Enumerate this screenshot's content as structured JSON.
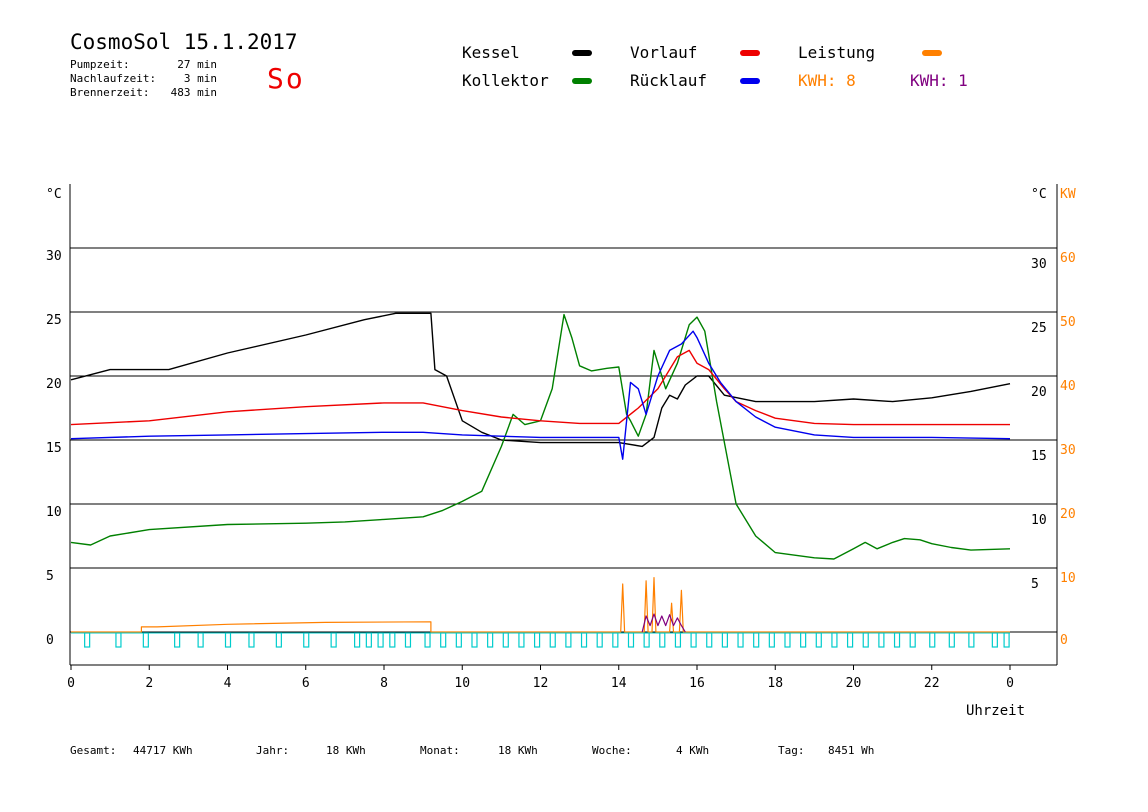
{
  "header": {
    "title": "CosmoSol 15.1.2017",
    "day": "So",
    "stats": [
      {
        "label": "Pumpzeit:",
        "value": "27 min"
      },
      {
        "label": "Nachlaufzeit:",
        "value": "3 min"
      },
      {
        "label": "Brennerzeit:",
        "value": "483 min"
      }
    ]
  },
  "legend": {
    "kessel": {
      "label": "Kessel",
      "color": "#000000"
    },
    "vorlauf": {
      "label": "Vorlauf",
      "color": "#ee0000"
    },
    "leistung": {
      "label": "Leistung",
      "color": "#ff8000"
    },
    "kollektor": {
      "label": "Kollektor",
      "color": "#008000"
    },
    "ruecklauf": {
      "label": "Rücklauf",
      "color": "#0000ee"
    },
    "kwh_solar": {
      "label": "KWH: 8",
      "color": "#ff8000"
    },
    "kwh_burner": {
      "label": "KWH: 1",
      "color": "#800080"
    }
  },
  "footer": {
    "gesamt_label": "Gesamt:",
    "gesamt_value": "44717 KWh",
    "jahr_label": "Jahr:",
    "jahr_value": "18 KWh",
    "monat_label": "Monat:",
    "monat_value": "18 KWh",
    "woche_label": "Woche:",
    "woche_value": "4 KWh",
    "tag_label": "Tag:",
    "tag_value": "8451 Wh"
  },
  "chart_data": {
    "type": "line",
    "title": "CosmoSol 15.1.2017",
    "xlabel": "Uhrzeit",
    "ylabel_left": "°C",
    "ylabel_right_temp": "°C",
    "ylabel_right_power": "KW",
    "xlim": [
      0,
      24
    ],
    "x_ticks": [
      "0",
      "2",
      "4",
      "6",
      "8",
      "10",
      "12",
      "14",
      "16",
      "18",
      "20",
      "22",
      "0"
    ],
    "ylim_left": [
      0,
      30
    ],
    "y_ticks_left": [
      "0",
      "5",
      "10",
      "15",
      "20",
      "25",
      "30"
    ],
    "y_ticks_right_temp": [
      "5",
      "10",
      "15",
      "20",
      "25",
      "30"
    ],
    "ylim_power": [
      0,
      60
    ],
    "y_ticks_power": [
      "0",
      "10",
      "20",
      "30",
      "40",
      "50",
      "60"
    ],
    "grid": "horizontal",
    "series": [
      {
        "name": "Kessel",
        "color": "#000000",
        "axis": "temp",
        "x": [
          0,
          1,
          2.5,
          4,
          6,
          7.5,
          8.3,
          9.2,
          9.3,
          9.6,
          10,
          10.5,
          11,
          12,
          13,
          14,
          14.6,
          14.9,
          15.1,
          15.3,
          15.5,
          15.7,
          16,
          16.3,
          16.7,
          17.5,
          19,
          20,
          21,
          22,
          23,
          24
        ],
        "y": [
          19.7,
          20.5,
          20.5,
          21.8,
          23.2,
          24.4,
          24.9,
          24.9,
          20.5,
          20,
          16.5,
          15.6,
          15,
          14.8,
          14.8,
          14.8,
          14.5,
          15.2,
          17.5,
          18.5,
          18.2,
          19.3,
          20,
          20,
          18.5,
          18,
          18,
          18.2,
          18,
          18.3,
          18.8,
          19.4
        ]
      },
      {
        "name": "Kollektor",
        "color": "#008000",
        "axis": "temp",
        "x": [
          0,
          0.5,
          1,
          2,
          4,
          6,
          7,
          8,
          9,
          9.5,
          10,
          10.5,
          11,
          11.3,
          11.6,
          12,
          12.3,
          12.6,
          12.8,
          13,
          13.3,
          13.7,
          14,
          14.2,
          14.3,
          14.5,
          14.7,
          14.9,
          15.2,
          15.5,
          15.8,
          16,
          16.2,
          16.5,
          17,
          17.5,
          18,
          18.5,
          19,
          19.5,
          20,
          20.3,
          20.6,
          21,
          21.3,
          21.7,
          22,
          22.5,
          23,
          24
        ],
        "y": [
          7,
          6.8,
          7.5,
          8,
          8.4,
          8.5,
          8.6,
          8.8,
          9,
          9.5,
          10.2,
          11,
          14.5,
          17,
          16.2,
          16.5,
          19,
          24.8,
          23,
          20.8,
          20.4,
          20.6,
          20.7,
          17,
          16.5,
          15.3,
          17,
          22,
          19,
          21,
          24,
          24.6,
          23.5,
          18,
          10,
          7.5,
          6.2,
          6,
          5.8,
          5.7,
          6.5,
          7,
          6.5,
          7,
          7.3,
          7.2,
          6.9,
          6.6,
          6.4,
          6.5
        ]
      },
      {
        "name": "Vorlauf",
        "color": "#ee0000",
        "axis": "temp",
        "x": [
          0,
          2,
          4,
          6,
          8,
          9,
          10,
          11,
          12,
          13,
          14,
          14.5,
          15,
          15.5,
          15.8,
          16,
          16.3,
          16.7,
          17,
          17.5,
          18,
          19,
          20,
          22,
          24
        ],
        "y": [
          16.2,
          16.5,
          17.2,
          17.6,
          17.9,
          17.9,
          17.3,
          16.8,
          16.5,
          16.3,
          16.3,
          17.5,
          19,
          21.5,
          22,
          21,
          20.5,
          19,
          18,
          17.3,
          16.7,
          16.3,
          16.2,
          16.2,
          16.2
        ]
      },
      {
        "name": "Rücklauf",
        "color": "#0000ee",
        "axis": "temp",
        "x": [
          0,
          2,
          4,
          6,
          8,
          9,
          10,
          11,
          12,
          13,
          14,
          14.1,
          14.3,
          14.5,
          14.7,
          15,
          15.3,
          15.6,
          15.9,
          16,
          16.3,
          16.6,
          17,
          17.5,
          18,
          19,
          20,
          22,
          24
        ],
        "y": [
          15.1,
          15.3,
          15.4,
          15.5,
          15.6,
          15.6,
          15.4,
          15.3,
          15.2,
          15.2,
          15.2,
          13.5,
          19.5,
          19,
          17,
          20,
          22,
          22.5,
          23.5,
          23,
          21,
          19.5,
          18,
          16.8,
          16,
          15.4,
          15.2,
          15.2,
          15.1
        ]
      },
      {
        "name": "Leistung",
        "color": "#ff8000",
        "axis": "power",
        "x": [
          0,
          1.8,
          1.8,
          2.2,
          4,
          6.5,
          9.2,
          9.2,
          14.05,
          14.1,
          14.15,
          14.2,
          14.65,
          14.7,
          14.75,
          14.85,
          14.9,
          14.95,
          15.3,
          15.35,
          15.4,
          15.55,
          15.6,
          15.65,
          24
        ],
        "y": [
          0,
          0,
          0.8,
          0.8,
          1.2,
          1.5,
          1.6,
          0,
          0,
          7.5,
          0,
          0,
          0,
          8,
          0,
          0,
          8.5,
          0,
          0,
          4.5,
          0,
          0,
          6.5,
          0,
          0
        ]
      },
      {
        "name": "Leistung-Brenner",
        "color": "#800080",
        "axis": "power",
        "x": [
          14.6,
          14.7,
          14.8,
          14.9,
          15.0,
          15.1,
          15.2,
          15.3,
          15.4,
          15.5,
          15.6,
          15.7
        ],
        "y": [
          0,
          2.5,
          1,
          2.8,
          1,
          2.5,
          1,
          2.7,
          1,
          2.2,
          1,
          0
        ]
      },
      {
        "name": "Pumpe",
        "color": "#00cccc",
        "axis": "pump",
        "x": [
          0.4,
          1.2,
          1.9,
          2.7,
          3.3,
          4,
          4.6,
          5.3,
          6,
          6.7,
          7.3,
          7.6,
          7.9,
          8.2,
          8.6,
          9.1,
          9.5,
          9.9,
          10.3,
          10.7,
          11.1,
          11.5,
          11.9,
          12.3,
          12.7,
          13.1,
          13.5,
          13.9,
          14.3,
          14.7,
          15.1,
          15.5,
          15.9,
          16.3,
          16.7,
          17.1,
          17.5,
          17.9,
          18.3,
          18.7,
          19.1,
          19.5,
          19.9,
          20.3,
          20.7,
          21.1,
          21.5,
          22,
          22.5,
          23,
          23.6,
          23.9
        ],
        "y": [
          1,
          1,
          1,
          1,
          1,
          1,
          1,
          1,
          1,
          1,
          1,
          1,
          1,
          1,
          1,
          1,
          1,
          1,
          1,
          1,
          1,
          1,
          1,
          1,
          1,
          1,
          1,
          1,
          1,
          1,
          1,
          1,
          1,
          1,
          1,
          1,
          1,
          1,
          1,
          1,
          1,
          1,
          1,
          1,
          1,
          1,
          1,
          1,
          1,
          1,
          1,
          1
        ]
      }
    ]
  }
}
